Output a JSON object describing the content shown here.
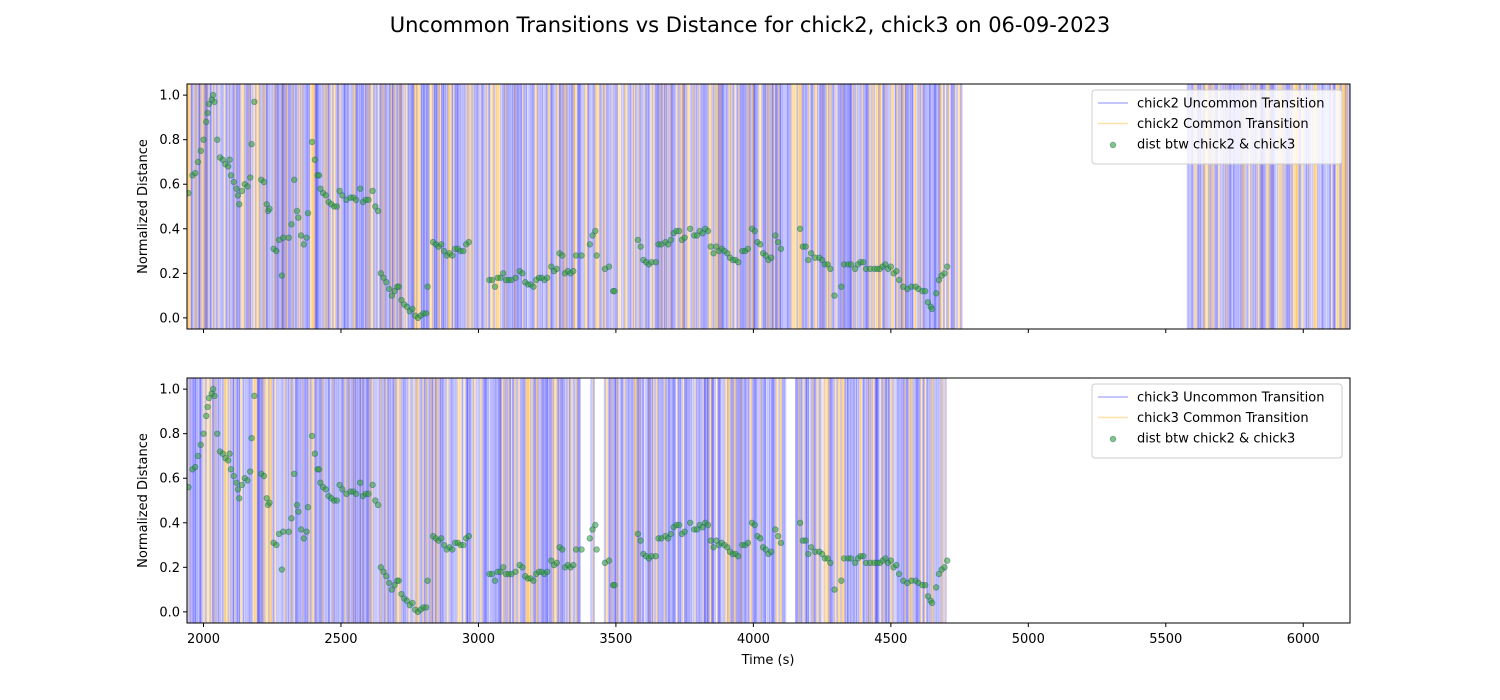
{
  "figure": {
    "title": "Uncommon Transitions vs Distance for chick2, chick3 on 06-09-2023",
    "xlabel": "Time (s)"
  },
  "colors": {
    "uncommon": "#0000ff",
    "common": "#ffa500",
    "distance": "#2ca02c",
    "distance_edge": "#1f5f6f"
  },
  "chart_data": [
    {
      "type": "scatter",
      "ylabel": "Normalized Distance",
      "xlim": [
        1940,
        6170
      ],
      "ylim": [
        -0.05,
        1.05
      ],
      "xticks": [
        2000,
        2500,
        3000,
        3500,
        4000,
        4500,
        5000,
        5500,
        6000
      ],
      "yticks": [
        "0.0",
        "0.2",
        "0.4",
        "0.6",
        "0.8",
        "1.0"
      ],
      "show_xticklabels": false,
      "legend": {
        "position": "top-right",
        "entries": [
          "chick2 Uncommon Transition",
          "chick2 Common Transition",
          "dist btw chick2 & chick3"
        ]
      },
      "transition_segments": [
        [
          1942,
          4760
        ],
        [
          5580,
          6170
        ]
      ],
      "common_transition_ratio": 0.3
    },
    {
      "type": "scatter",
      "ylabel": "Normalized Distance",
      "xlim": [
        1940,
        6170
      ],
      "ylim": [
        -0.05,
        1.05
      ],
      "xticks": [
        2000,
        2500,
        3000,
        3500,
        4000,
        4500,
        5000,
        5500,
        6000
      ],
      "yticks": [
        "0.0",
        "0.2",
        "0.4",
        "0.6",
        "0.8",
        "1.0"
      ],
      "show_xticklabels": true,
      "xticklabels": [
        "2000",
        "2500",
        "3000",
        "3500",
        "4000",
        "4500",
        "5000",
        "5500",
        "6000"
      ],
      "legend": {
        "position": "top-right",
        "entries": [
          "chick3 Uncommon Transition",
          "chick3 Common Transition",
          "dist btw chick2 & chick3"
        ]
      },
      "transition_segments": [
        [
          1942,
          3370
        ],
        [
          3410,
          3425
        ],
        [
          3460,
          4115
        ],
        [
          4155,
          4700
        ]
      ],
      "common_transition_ratio": 0.25
    }
  ],
  "distance_points": [
    [
      1945,
      0.56
    ],
    [
      1960,
      0.64
    ],
    [
      1970,
      0.65
    ],
    [
      1980,
      0.7
    ],
    [
      1990,
      0.75
    ],
    [
      2000,
      0.8
    ],
    [
      2010,
      0.88
    ],
    [
      2015,
      0.92
    ],
    [
      2020,
      0.96
    ],
    [
      2030,
      0.98
    ],
    [
      2035,
      1.0
    ],
    [
      2040,
      0.97
    ],
    [
      2050,
      0.8
    ],
    [
      2060,
      0.72
    ],
    [
      2070,
      0.71
    ],
    [
      2080,
      0.69
    ],
    [
      2090,
      0.68
    ],
    [
      2095,
      0.71
    ],
    [
      2100,
      0.64
    ],
    [
      2110,
      0.61
    ],
    [
      2120,
      0.58
    ],
    [
      2125,
      0.55
    ],
    [
      2130,
      0.51
    ],
    [
      2140,
      0.57
    ],
    [
      2150,
      0.6
    ],
    [
      2160,
      0.59
    ],
    [
      2170,
      0.63
    ],
    [
      2175,
      0.78
    ],
    [
      2185,
      0.97
    ],
    [
      2210,
      0.62
    ],
    [
      2220,
      0.61
    ],
    [
      2230,
      0.51
    ],
    [
      2235,
      0.48
    ],
    [
      2240,
      0.49
    ],
    [
      2255,
      0.31
    ],
    [
      2265,
      0.3
    ],
    [
      2275,
      0.35
    ],
    [
      2285,
      0.19
    ],
    [
      2290,
      0.36
    ],
    [
      2310,
      0.36
    ],
    [
      2320,
      0.42
    ],
    [
      2330,
      0.62
    ],
    [
      2340,
      0.48
    ],
    [
      2345,
      0.45
    ],
    [
      2355,
      0.37
    ],
    [
      2365,
      0.33
    ],
    [
      2375,
      0.36
    ],
    [
      2380,
      0.47
    ],
    [
      2395,
      0.79
    ],
    [
      2405,
      0.71
    ],
    [
      2415,
      0.64
    ],
    [
      2420,
      0.64
    ],
    [
      2425,
      0.58
    ],
    [
      2435,
      0.56
    ],
    [
      2445,
      0.55
    ],
    [
      2455,
      0.52
    ],
    [
      2465,
      0.51
    ],
    [
      2475,
      0.5
    ],
    [
      2485,
      0.5
    ],
    [
      2495,
      0.57
    ],
    [
      2505,
      0.55
    ],
    [
      2520,
      0.53
    ],
    [
      2535,
      0.54
    ],
    [
      2545,
      0.54
    ],
    [
      2555,
      0.53
    ],
    [
      2570,
      0.58
    ],
    [
      2580,
      0.52
    ],
    [
      2590,
      0.53
    ],
    [
      2600,
      0.53
    ],
    [
      2615,
      0.57
    ],
    [
      2625,
      0.5
    ],
    [
      2635,
      0.48
    ],
    [
      2645,
      0.2
    ],
    [
      2655,
      0.18
    ],
    [
      2665,
      0.16
    ],
    [
      2675,
      0.13
    ],
    [
      2685,
      0.1
    ],
    [
      2695,
      0.12
    ],
    [
      2705,
      0.14
    ],
    [
      2710,
      0.14
    ],
    [
      2720,
      0.08
    ],
    [
      2730,
      0.06
    ],
    [
      2740,
      0.05
    ],
    [
      2750,
      0.03
    ],
    [
      2760,
      0.04
    ],
    [
      2770,
      0.01
    ],
    [
      2780,
      0.0
    ],
    [
      2790,
      0.01
    ],
    [
      2800,
      0.02
    ],
    [
      2810,
      0.02
    ],
    [
      2815,
      0.14
    ],
    [
      2835,
      0.34
    ],
    [
      2845,
      0.33
    ],
    [
      2855,
      0.32
    ],
    [
      2865,
      0.33
    ],
    [
      2875,
      0.3
    ],
    [
      2885,
      0.28
    ],
    [
      2895,
      0.29
    ],
    [
      2905,
      0.28
    ],
    [
      2915,
      0.31
    ],
    [
      2925,
      0.31
    ],
    [
      2935,
      0.3
    ],
    [
      2945,
      0.3
    ],
    [
      2955,
      0.33
    ],
    [
      2965,
      0.34
    ],
    [
      3040,
      0.17
    ],
    [
      3050,
      0.17
    ],
    [
      3060,
      0.14
    ],
    [
      3070,
      0.18
    ],
    [
      3080,
      0.18
    ],
    [
      3090,
      0.2
    ],
    [
      3100,
      0.17
    ],
    [
      3110,
      0.17
    ],
    [
      3120,
      0.17
    ],
    [
      3135,
      0.18
    ],
    [
      3150,
      0.21
    ],
    [
      3160,
      0.2
    ],
    [
      3170,
      0.16
    ],
    [
      3180,
      0.15
    ],
    [
      3190,
      0.15
    ],
    [
      3200,
      0.14
    ],
    [
      3210,
      0.17
    ],
    [
      3220,
      0.18
    ],
    [
      3230,
      0.18
    ],
    [
      3240,
      0.17
    ],
    [
      3250,
      0.18
    ],
    [
      3265,
      0.23
    ],
    [
      3275,
      0.21
    ],
    [
      3285,
      0.22
    ],
    [
      3295,
      0.29
    ],
    [
      3305,
      0.28
    ],
    [
      3315,
      0.2
    ],
    [
      3325,
      0.21
    ],
    [
      3335,
      0.2
    ],
    [
      3345,
      0.21
    ],
    [
      3355,
      0.28
    ],
    [
      3375,
      0.28
    ],
    [
      3405,
      0.33
    ],
    [
      3415,
      0.37
    ],
    [
      3425,
      0.39
    ],
    [
      3430,
      0.28
    ],
    [
      3460,
      0.22
    ],
    [
      3475,
      0.23
    ],
    [
      3490,
      0.12
    ],
    [
      3495,
      0.12
    ],
    [
      3580,
      0.35
    ],
    [
      3590,
      0.32
    ],
    [
      3600,
      0.26
    ],
    [
      3610,
      0.25
    ],
    [
      3620,
      0.24
    ],
    [
      3630,
      0.25
    ],
    [
      3645,
      0.25
    ],
    [
      3655,
      0.33
    ],
    [
      3665,
      0.33
    ],
    [
      3680,
      0.34
    ],
    [
      3690,
      0.33
    ],
    [
      3700,
      0.35
    ],
    [
      3710,
      0.38
    ],
    [
      3720,
      0.39
    ],
    [
      3730,
      0.39
    ],
    [
      3740,
      0.35
    ],
    [
      3750,
      0.36
    ],
    [
      3770,
      0.4
    ],
    [
      3785,
      0.37
    ],
    [
      3795,
      0.37
    ],
    [
      3805,
      0.39
    ],
    [
      3815,
      0.38
    ],
    [
      3825,
      0.4
    ],
    [
      3835,
      0.39
    ],
    [
      3845,
      0.32
    ],
    [
      3855,
      0.29
    ],
    [
      3865,
      0.32
    ],
    [
      3875,
      0.3
    ],
    [
      3885,
      0.31
    ],
    [
      3895,
      0.3
    ],
    [
      3905,
      0.29
    ],
    [
      3915,
      0.27
    ],
    [
      3925,
      0.26
    ],
    [
      3935,
      0.26
    ],
    [
      3945,
      0.25
    ],
    [
      3960,
      0.3
    ],
    [
      3970,
      0.3
    ],
    [
      3980,
      0.31
    ],
    [
      3995,
      0.4
    ],
    [
      4005,
      0.39
    ],
    [
      4015,
      0.34
    ],
    [
      4025,
      0.33
    ],
    [
      4035,
      0.29
    ],
    [
      4045,
      0.28
    ],
    [
      4055,
      0.26
    ],
    [
      4065,
      0.27
    ],
    [
      4080,
      0.37
    ],
    [
      4090,
      0.34
    ],
    [
      4100,
      0.31
    ],
    [
      4170,
      0.4
    ],
    [
      4180,
      0.32
    ],
    [
      4190,
      0.32
    ],
    [
      4200,
      0.26
    ],
    [
      4210,
      0.29
    ],
    [
      4225,
      0.27
    ],
    [
      4240,
      0.27
    ],
    [
      4250,
      0.26
    ],
    [
      4260,
      0.24
    ],
    [
      4270,
      0.24
    ],
    [
      4280,
      0.22
    ],
    [
      4295,
      0.1
    ],
    [
      4320,
      0.14
    ],
    [
      4330,
      0.24
    ],
    [
      4345,
      0.24
    ],
    [
      4355,
      0.24
    ],
    [
      4370,
      0.22
    ],
    [
      4380,
      0.24
    ],
    [
      4390,
      0.25
    ],
    [
      4400,
      0.25
    ],
    [
      4410,
      0.22
    ],
    [
      4425,
      0.22
    ],
    [
      4440,
      0.22
    ],
    [
      4450,
      0.22
    ],
    [
      4460,
      0.22
    ],
    [
      4470,
      0.23
    ],
    [
      4480,
      0.24
    ],
    [
      4490,
      0.22
    ],
    [
      4500,
      0.23
    ],
    [
      4510,
      0.2
    ],
    [
      4520,
      0.21
    ],
    [
      4530,
      0.17
    ],
    [
      4545,
      0.14
    ],
    [
      4560,
      0.13
    ],
    [
      4575,
      0.14
    ],
    [
      4590,
      0.14
    ],
    [
      4600,
      0.13
    ],
    [
      4615,
      0.12
    ],
    [
      4625,
      0.12
    ],
    [
      4635,
      0.07
    ],
    [
      4645,
      0.05
    ],
    [
      4650,
      0.04
    ],
    [
      4665,
      0.11
    ],
    [
      4675,
      0.17
    ],
    [
      4685,
      0.19
    ],
    [
      4695,
      0.2
    ],
    [
      4705,
      0.23
    ]
  ]
}
